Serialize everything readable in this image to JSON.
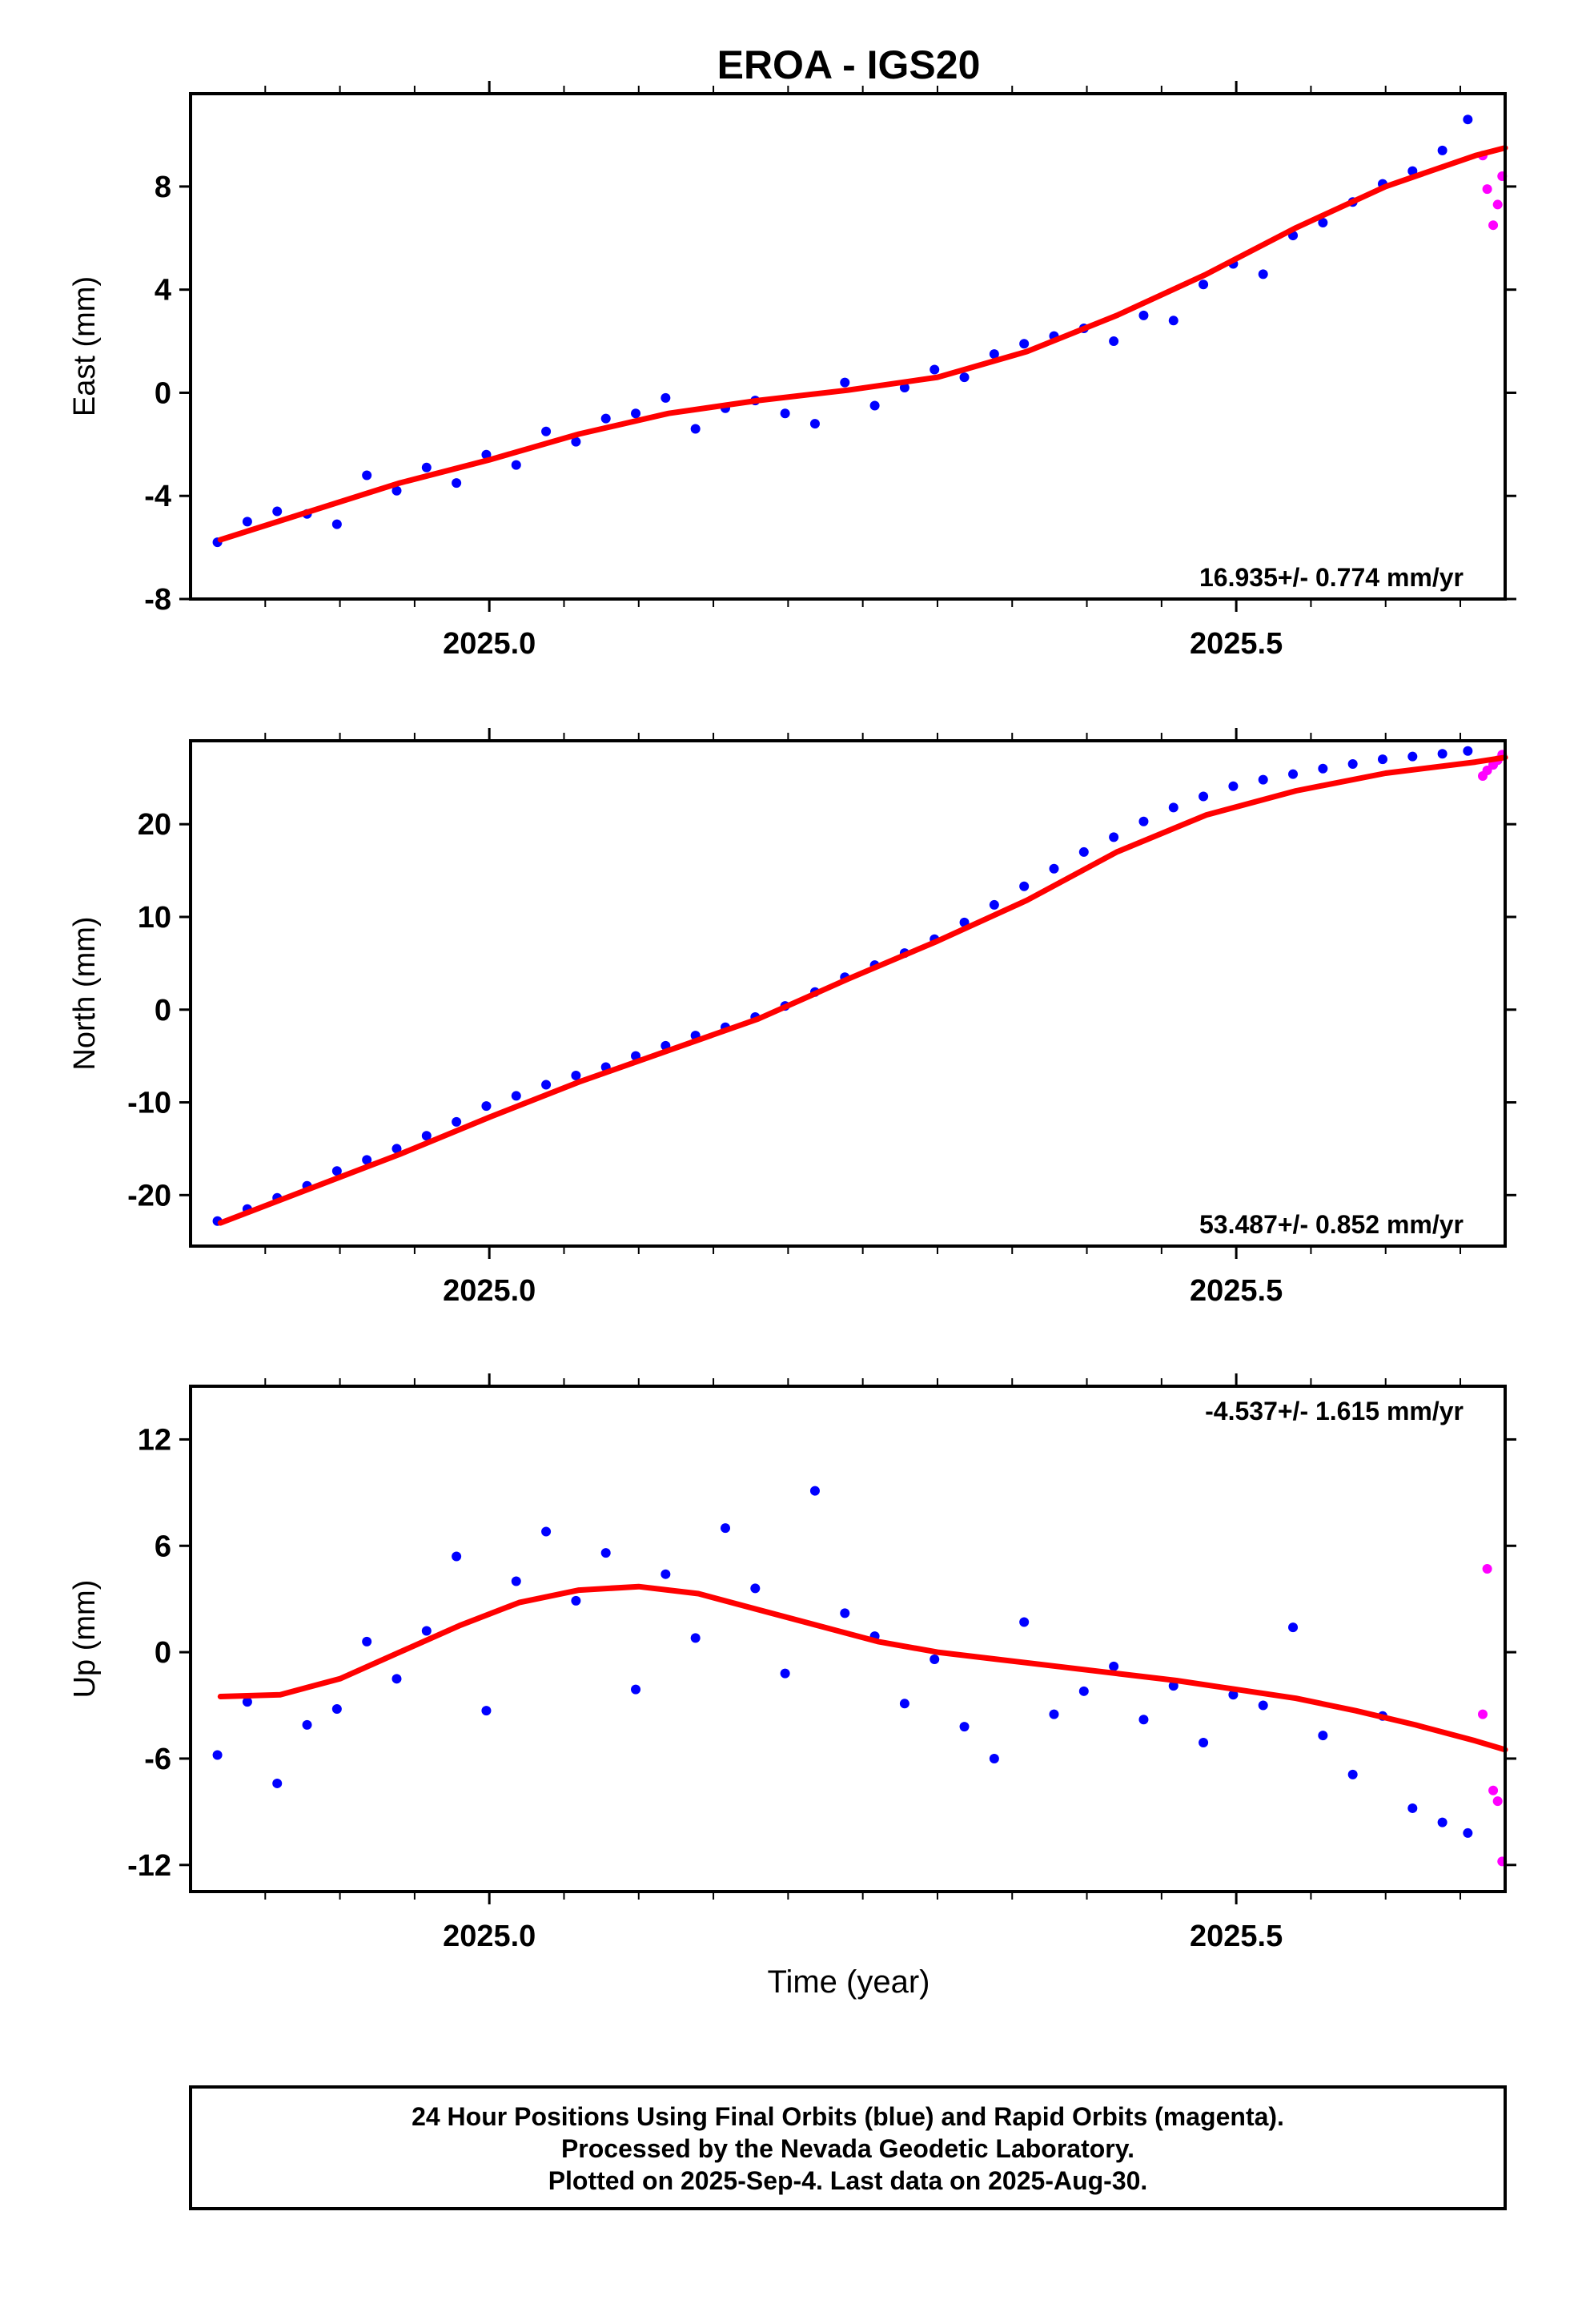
{
  "figure": {
    "title": "EROA - IGS20",
    "xlabel": "Time (year)",
    "footer": [
      "24 Hour Positions Using Final Orbits (blue) and Rapid Orbits (magenta).",
      "Processed by the Nevada Geodetic Laboratory.",
      "Plotted on 2025-Sep-4. Last data on 2025-Aug-30."
    ]
  },
  "colors": {
    "final": "#0000ff",
    "rapid": "#ff00ff",
    "fit": "#ff0000",
    "frame": "#000000"
  },
  "chart_data": [
    {
      "type": "scatter",
      "component": "East",
      "ylabel": "East (mm)",
      "rate_text": "16.935+/- 0.774 mm/yr",
      "rate_position": "bottom-right",
      "xlim": [
        2024.8,
        2025.68
      ],
      "ylim": [
        -8,
        11.6
      ],
      "yticks": [
        -8,
        -4,
        0,
        4,
        8
      ],
      "xticks": [
        2025.0,
        2025.5
      ],
      "xtick_labels": [
        "2025.0",
        "2025.5"
      ],
      "series": [
        {
          "x": [
            2024.818,
            2024.838,
            2024.858,
            2024.878,
            2024.898,
            2024.918,
            2024.938,
            2024.958,
            2024.978,
            2024.998,
            2025.018,
            2025.038,
            2025.058,
            2025.078,
            2025.098,
            2025.118,
            2025.138,
            2025.158,
            2025.178,
            2025.198,
            2025.218,
            2025.238,
            2025.258,
            2025.278,
            2025.298,
            2025.318,
            2025.338,
            2025.358,
            2025.378,
            2025.398,
            2025.418,
            2025.438,
            2025.458,
            2025.478,
            2025.498,
            2025.518,
            2025.538,
            2025.558,
            2025.578,
            2025.598,
            2025.618,
            2025.638,
            2025.655
          ],
          "values": [
            -5.8,
            -5.0,
            -4.6,
            -4.7,
            -5.1,
            -3.2,
            -3.8,
            -2.9,
            -3.5,
            -2.4,
            -2.8,
            -1.5,
            -1.9,
            -1.0,
            -0.8,
            -0.2,
            -1.4,
            -0.6,
            -0.3,
            -0.8,
            -1.2,
            0.4,
            -0.5,
            0.2,
            0.9,
            0.6,
            1.5,
            1.9,
            2.2,
            2.5,
            2.0,
            3.0,
            2.8,
            4.2,
            5.0,
            4.6,
            6.1,
            6.6,
            7.4,
            8.1,
            8.6,
            9.4,
            10.6
          ]
        },
        {
          "x": [
            2025.665,
            2025.668,
            2025.672,
            2025.675,
            2025.678
          ],
          "values": [
            9.2,
            7.9,
            6.5,
            7.3,
            8.4
          ],
          "source": "rapid"
        }
      ],
      "fit": {
        "x": [
          2024.82,
          2024.88,
          2024.94,
          2025.0,
          2025.06,
          2025.12,
          2025.18,
          2025.24,
          2025.3,
          2025.36,
          2025.42,
          2025.48,
          2025.54,
          2025.6,
          2025.66,
          2025.68
        ],
        "values": [
          -5.7,
          -4.6,
          -3.5,
          -2.6,
          -1.6,
          -0.8,
          -0.3,
          0.1,
          0.6,
          1.6,
          3.0,
          4.6,
          6.4,
          8.0,
          9.2,
          9.5
        ]
      }
    },
    {
      "type": "scatter",
      "component": "North",
      "ylabel": "North (mm)",
      "rate_text": "53.487+/- 0.852 mm/yr",
      "rate_position": "bottom-right",
      "xlim": [
        2024.8,
        2025.68
      ],
      "ylim": [
        -25.5,
        29
      ],
      "yticks": [
        -20,
        -10,
        0,
        10,
        20
      ],
      "xticks": [
        2025.0,
        2025.5
      ],
      "xtick_labels": [
        "2025.0",
        "2025.5"
      ],
      "series": [
        {
          "x": [
            2024.818,
            2024.838,
            2024.858,
            2024.878,
            2024.898,
            2024.918,
            2024.938,
            2024.958,
            2024.978,
            2024.998,
            2025.018,
            2025.038,
            2025.058,
            2025.078,
            2025.098,
            2025.118,
            2025.138,
            2025.158,
            2025.178,
            2025.198,
            2025.218,
            2025.238,
            2025.258,
            2025.278,
            2025.298,
            2025.318,
            2025.338,
            2025.358,
            2025.378,
            2025.398,
            2025.418,
            2025.438,
            2025.458,
            2025.478,
            2025.498,
            2025.518,
            2025.538,
            2025.558,
            2025.578,
            2025.598,
            2025.618,
            2025.638,
            2025.655
          ],
          "values": [
            -22.8,
            -21.5,
            -20.3,
            -19.0,
            -17.4,
            -16.2,
            -15.0,
            -13.6,
            -12.1,
            -10.4,
            -9.3,
            -8.1,
            -7.1,
            -6.2,
            -5.0,
            -3.9,
            -2.8,
            -1.9,
            -0.8,
            0.4,
            1.9,
            3.5,
            4.8,
            6.1,
            7.6,
            9.4,
            11.3,
            13.3,
            15.2,
            17.0,
            18.6,
            20.3,
            21.8,
            23.0,
            24.1,
            24.8,
            25.4,
            26.0,
            26.5,
            27.0,
            27.3,
            27.6,
            27.9
          ]
        },
        {
          "x": [
            2025.665,
            2025.668,
            2025.672,
            2025.675,
            2025.678
          ],
          "values": [
            25.2,
            25.8,
            26.4,
            26.9,
            27.5
          ],
          "source": "rapid"
        }
      ],
      "fit": {
        "x": [
          2024.82,
          2024.88,
          2024.94,
          2025.0,
          2025.06,
          2025.12,
          2025.18,
          2025.24,
          2025.3,
          2025.36,
          2025.42,
          2025.48,
          2025.54,
          2025.6,
          2025.66,
          2025.68
        ],
        "values": [
          -23.0,
          -19.3,
          -15.6,
          -11.6,
          -7.8,
          -4.4,
          -1.0,
          3.3,
          7.4,
          11.8,
          17.0,
          21.0,
          23.6,
          25.5,
          26.7,
          27.2
        ]
      }
    },
    {
      "type": "scatter",
      "component": "Up",
      "ylabel": "Up (mm)",
      "rate_text": "-4.537+/- 1.615 mm/yr",
      "rate_position": "top-right",
      "xlim": [
        2024.8,
        2025.68
      ],
      "ylim": [
        -13.5,
        15
      ],
      "yticks": [
        -12,
        -6,
        0,
        6,
        12
      ],
      "xticks": [
        2025.0,
        2025.5
      ],
      "xtick_labels": [
        "2025.0",
        "2025.5"
      ],
      "series": [
        {
          "x": [
            2024.818,
            2024.838,
            2024.858,
            2024.878,
            2024.898,
            2024.918,
            2024.938,
            2024.958,
            2024.978,
            2024.998,
            2025.018,
            2025.038,
            2025.058,
            2025.078,
            2025.098,
            2025.118,
            2025.138,
            2025.158,
            2025.178,
            2025.198,
            2025.218,
            2025.238,
            2025.258,
            2025.278,
            2025.298,
            2025.318,
            2025.338,
            2025.358,
            2025.378,
            2025.398,
            2025.418,
            2025.438,
            2025.458,
            2025.478,
            2025.498,
            2025.518,
            2025.538,
            2025.558,
            2025.578,
            2025.598,
            2025.618,
            2025.638,
            2025.655
          ],
          "values": [
            -5.8,
            -2.8,
            -7.4,
            -4.1,
            -3.2,
            0.6,
            -1.5,
            1.2,
            5.4,
            -3.3,
            4.0,
            6.8,
            2.9,
            5.6,
            -2.1,
            4.4,
            0.8,
            7.0,
            3.6,
            -1.2,
            9.1,
            2.2,
            0.9,
            -2.9,
            -0.4,
            -4.2,
            -6.0,
            1.7,
            -3.5,
            -2.2,
            -0.8,
            -3.8,
            -1.9,
            -5.1,
            -2.4,
            -3.0,
            1.4,
            -4.7,
            -6.9,
            -3.6,
            -8.8,
            -9.6,
            -10.2
          ]
        },
        {
          "x": [
            2025.665,
            2025.668,
            2025.672,
            2025.675,
            2025.678
          ],
          "values": [
            -3.5,
            4.7,
            -7.8,
            -8.4,
            -11.8
          ],
          "source": "rapid"
        }
      ],
      "fit": {
        "x": [
          2024.82,
          2024.86,
          2024.9,
          2024.94,
          2024.98,
          2025.02,
          2025.06,
          2025.1,
          2025.14,
          2025.18,
          2025.22,
          2025.26,
          2025.3,
          2025.34,
          2025.38,
          2025.42,
          2025.46,
          2025.5,
          2025.54,
          2025.58,
          2025.62,
          2025.66,
          2025.68
        ],
        "values": [
          -2.5,
          -2.4,
          -1.5,
          0.0,
          1.5,
          2.8,
          3.5,
          3.7,
          3.3,
          2.4,
          1.5,
          0.6,
          0.0,
          -0.4,
          -0.8,
          -1.2,
          -1.6,
          -2.1,
          -2.6,
          -3.3,
          -4.1,
          -5.0,
          -5.5
        ]
      }
    }
  ]
}
